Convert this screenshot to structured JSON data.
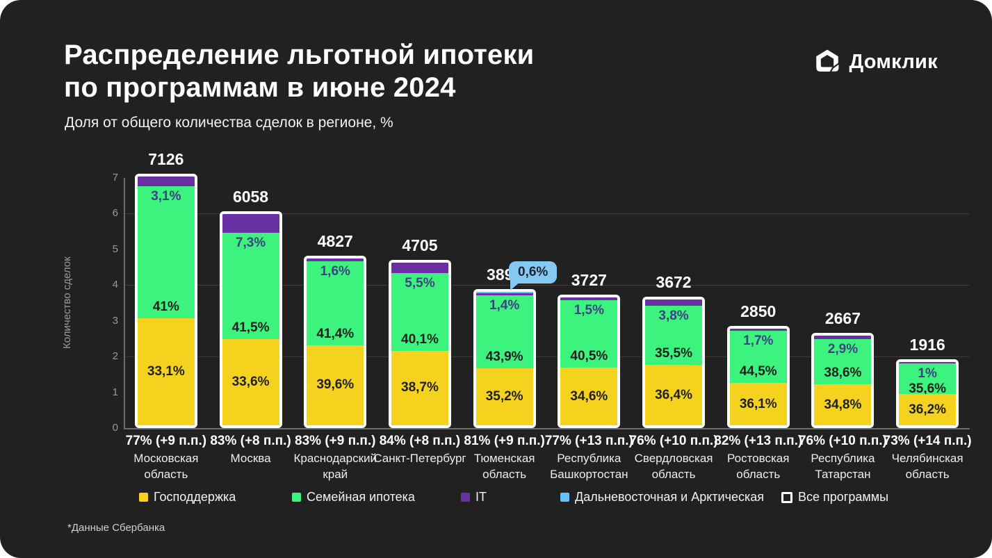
{
  "header": {
    "title_line1": "Распределение льготной ипотеки",
    "title_line2": "по программам в июне 2024",
    "subtitle": "Доля от общего количества сделок в регионе, %",
    "logo_text": "Домклик"
  },
  "chart_data": {
    "type": "bar",
    "stacked": true,
    "title": "Распределение льготной ипотеки по программам в июне 2024",
    "subtitle": "Доля от общего количества сделок в регионе, %",
    "ylabel": "Количество сделок",
    "y_ticks": [
      0,
      1,
      2,
      3,
      4,
      5,
      6,
      7
    ],
    "axis_units": "thousands_of_deals",
    "gridlines": [
      2,
      4,
      6
    ],
    "colors": {
      "gos": "#F5D21E",
      "family": "#3CF47D",
      "it": "#6A2FA2",
      "fareast": "#64C2F5",
      "all_programs_outline": "#FFFFFF",
      "background": "#212121"
    },
    "legend": [
      {
        "key": "gos",
        "label": "Господдержка",
        "color": "#F5D21E"
      },
      {
        "key": "family",
        "label": "Семейная ипотека",
        "color": "#3CF47D"
      },
      {
        "key": "it",
        "label": "IT",
        "color": "#6A2FA2"
      },
      {
        "key": "fareast",
        "label": "Дальневосточная и Арктическая",
        "color": "#64C2F5"
      },
      {
        "key": "all",
        "label": "Все программы",
        "color": "outline-white"
      }
    ],
    "callout": {
      "region": "Тюменская область",
      "segment": "Дальневосточная и Арктическая",
      "label": "0,6%",
      "value": 0.6
    },
    "regions": [
      {
        "name": "Московская область",
        "total": 7126,
        "share_label": "77% (+9 п.п.)",
        "gos": 33.1,
        "gos_label": "33,1%",
        "family": 41.0,
        "family_label": "41%",
        "it": 3.1,
        "it_label": "3,1%",
        "fareast": 0
      },
      {
        "name": "Москва",
        "total": 6058,
        "share_label": "83% (+8 п.п.)",
        "gos": 33.6,
        "gos_label": "33,6%",
        "family": 41.5,
        "family_label": "41,5%",
        "it": 7.3,
        "it_label": "7,3%",
        "fareast": 0
      },
      {
        "name": "Краснодарский край",
        "total": 4827,
        "share_label": "83% (+9 п.п.)",
        "gos": 39.6,
        "gos_label": "39,6%",
        "family": 41.4,
        "family_label": "41,4%",
        "it": 1.6,
        "it_label": "1,6%",
        "fareast": 0
      },
      {
        "name": "Санкт-Петербург",
        "total": 4705,
        "share_label": "84% (+8 п.п.)",
        "gos": 38.7,
        "gos_label": "38,7%",
        "family": 40.1,
        "family_label": "40,1%",
        "it": 5.5,
        "it_label": "5,5%",
        "fareast": 0
      },
      {
        "name": "Тюменская область",
        "total": 3896,
        "share_label": "81% (+9 п.п.)",
        "gos": 35.2,
        "gos_label": "35,2%",
        "family": 43.9,
        "family_label": "43,9%",
        "it": 1.4,
        "it_label": "1,4%",
        "fareast": 0.6
      },
      {
        "name": "Республика Башкортостан",
        "total": 3727,
        "share_label": "77% (+13 п.п.)",
        "gos": 34.6,
        "gos_label": "34,6%",
        "family": 40.5,
        "family_label": "40,5%",
        "it": 1.5,
        "it_label": "1,5%",
        "fareast": 0
      },
      {
        "name": "Свердловская область",
        "total": 3672,
        "share_label": "76% (+10 п.п.)",
        "gos": 36.4,
        "gos_label": "36,4%",
        "family": 35.5,
        "family_label": "35,5%",
        "it": 3.8,
        "it_label": "3,8%",
        "fareast": 0
      },
      {
        "name": "Ростовская область",
        "total": 2850,
        "share_label": "82% (+13 п.п.)",
        "gos": 36.1,
        "gos_label": "36,1%",
        "family": 44.5,
        "family_label": "44,5%",
        "it": 1.7,
        "it_label": "1,7%",
        "fareast": 0
      },
      {
        "name": "Республика Татарстан",
        "total": 2667,
        "share_label": "76% (+10 п.п.)",
        "gos": 34.8,
        "gos_label": "34,8%",
        "family": 38.6,
        "family_label": "38,6%",
        "it": 2.9,
        "it_label": "2,9%",
        "fareast": 0
      },
      {
        "name": "Челябинская область",
        "total": 1916,
        "share_label": "73% (+14 п.п.)",
        "gos": 36.2,
        "gos_label": "36,2%",
        "family": 35.6,
        "family_label": "35,6%",
        "it": 1.0,
        "it_label": "1%",
        "fareast": 0
      }
    ]
  },
  "footer": {
    "source": "*Данные Сбербанка"
  }
}
